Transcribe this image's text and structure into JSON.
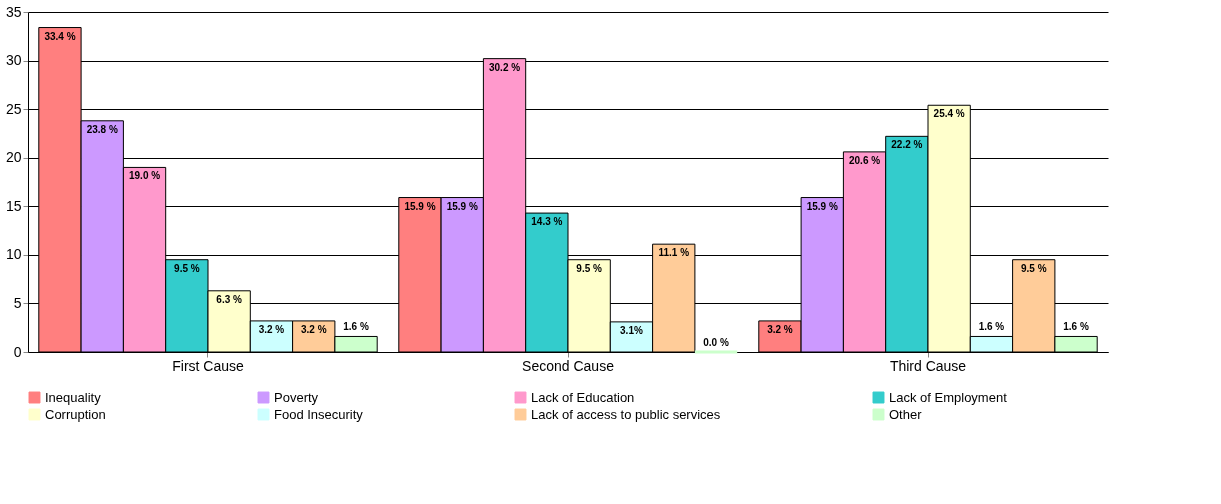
{
  "chart_data": {
    "type": "bar",
    "categories": [
      "First Cause",
      "Second Cause",
      "Third Cause"
    ],
    "series": [
      {
        "name": "Inequality",
        "color": "#ff7f7f",
        "values": [
          33.4,
          15.9,
          3.2
        ],
        "value_labels": [
          "33.4 %",
          "15.9 %",
          "3.2 %"
        ]
      },
      {
        "name": "Poverty",
        "color": "#cc99ff",
        "values": [
          23.8,
          15.9,
          15.9
        ],
        "value_labels": [
          "23.8 %",
          "15.9 %",
          "15.9 %"
        ]
      },
      {
        "name": "Lack of Education",
        "color": "#ff99cc",
        "values": [
          19.0,
          30.2,
          20.6
        ],
        "value_labels": [
          "19.0 %",
          "30.2 %",
          "20.6 %"
        ]
      },
      {
        "name": "Lack of Employment",
        "color": "#33cccc",
        "values": [
          9.5,
          14.3,
          22.2
        ],
        "value_labels": [
          "9.5 %",
          "14.3 %",
          "22.2 %"
        ]
      },
      {
        "name": "Corruption",
        "color": "#ffffcc",
        "values": [
          6.3,
          9.5,
          25.4
        ],
        "value_labels": [
          "6.3 %",
          "9.5 %",
          "25.4 %"
        ]
      },
      {
        "name": "Food Insecurity",
        "color": "#ccffff",
        "values": [
          3.2,
          3.1,
          1.6
        ],
        "value_labels": [
          "3.2 %",
          "3.1%",
          "1.6 %"
        ]
      },
      {
        "name": "Lack of access to public services",
        "color": "#ffcc99",
        "values": [
          3.2,
          11.1,
          9.5
        ],
        "value_labels": [
          "3.2 %",
          "11.1 %",
          "9.5 %"
        ]
      },
      {
        "name": "Other",
        "color": "#ccffcc",
        "values": [
          1.6,
          0.0,
          1.6
        ],
        "value_labels": [
          "1.6 %",
          "0.0 %",
          "1.6 %"
        ]
      }
    ],
    "ylim": [
      0,
      35
    ],
    "yticks": [
      0,
      5,
      10,
      15,
      20,
      25,
      30,
      35
    ],
    "grid": "y",
    "legend": "bottom"
  }
}
